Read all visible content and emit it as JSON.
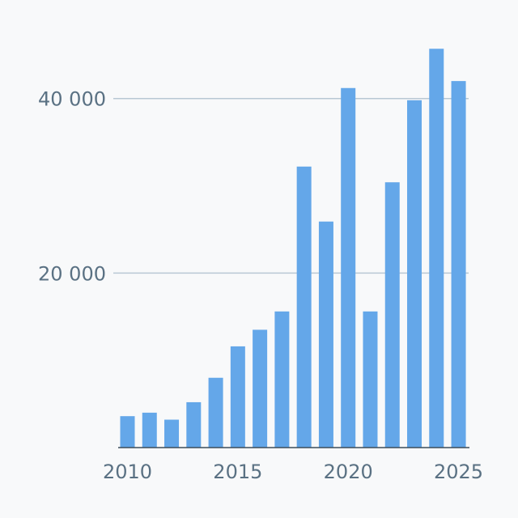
{
  "chart_data": {
    "type": "bar",
    "title": "",
    "xlabel": "",
    "ylabel": "",
    "categories": [
      2010,
      2011,
      2012,
      2013,
      2014,
      2015,
      2016,
      2017,
      2018,
      2019,
      2020,
      2021,
      2022,
      2023,
      2024,
      2025
    ],
    "values": [
      3600,
      4000,
      3200,
      5200,
      8000,
      11600,
      13500,
      15600,
      32200,
      25900,
      41200,
      15600,
      30400,
      39800,
      45700,
      42000
    ],
    "x_tick_labels": [
      {
        "year": 2010,
        "label": "2010"
      },
      {
        "year": 2015,
        "label": "2015"
      },
      {
        "year": 2020,
        "label": "2020"
      },
      {
        "year": 2025,
        "label": "2025"
      }
    ],
    "y_ticks": [
      {
        "value": 20000,
        "label": "20 000"
      },
      {
        "value": 40000,
        "label": "40 000"
      }
    ],
    "ylim": [
      0,
      46000
    ],
    "grid": "horizontal",
    "legend": "none",
    "colors": {
      "bar": "#64a7e9",
      "grid": "#b9c8d4",
      "axis": "#3c4d5a",
      "tick_text": "#5a7183"
    }
  }
}
